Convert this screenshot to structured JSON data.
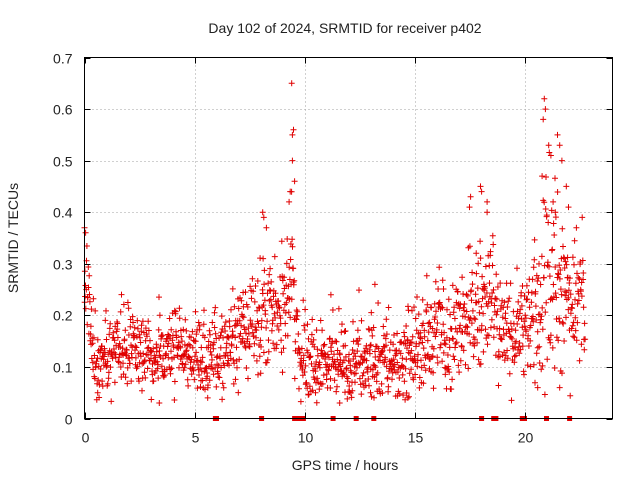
{
  "chart_data": {
    "type": "scatter",
    "title": "Day 102 of 2024, SRMTID for receiver p402",
    "xlabel": "GPS time / hours",
    "ylabel": "SRMTID / TECUs",
    "xlim": [
      0,
      24
    ],
    "ylim": [
      0,
      0.7
    ],
    "x_ticks": [
      0,
      5,
      10,
      15,
      20
    ],
    "x_tick_labels": [
      "0",
      "5",
      "10",
      "15",
      "20"
    ],
    "y_ticks": [
      0,
      0.1,
      0.2,
      0.3,
      0.4,
      0.5,
      0.6,
      0.7
    ],
    "y_tick_labels": [
      "0",
      "0.1",
      "0.2",
      "0.3",
      "0.4",
      "0.5",
      "0.6",
      "0.7"
    ],
    "grid": true,
    "marker": "+",
    "color": "#e00000",
    "profile": {
      "x": [
        0,
        0.05,
        0.15,
        0.4,
        0.8,
        1.5,
        2.5,
        3.3,
        4.0,
        5.0,
        6.0,
        6.8,
        7.3,
        7.8,
        8.3,
        8.8,
        9.1,
        9.4,
        9.6,
        9.8,
        10.2,
        11.0,
        12.0,
        13.0,
        13.8,
        14.5,
        15.2,
        16.0,
        17.0,
        17.8,
        18.3,
        18.7,
        19.2,
        19.8,
        20.3,
        20.8,
        21.1,
        21.5,
        21.9,
        22.4,
        22.75
      ],
      "y": [
        0.2,
        0.3,
        0.19,
        0.13,
        0.12,
        0.14,
        0.13,
        0.12,
        0.13,
        0.13,
        0.12,
        0.15,
        0.17,
        0.2,
        0.21,
        0.2,
        0.24,
        0.32,
        0.15,
        0.12,
        0.12,
        0.11,
        0.11,
        0.11,
        0.11,
        0.12,
        0.15,
        0.16,
        0.17,
        0.2,
        0.25,
        0.2,
        0.17,
        0.17,
        0.18,
        0.22,
        0.3,
        0.28,
        0.25,
        0.22,
        0.22
      ]
    },
    "spread": {
      "x": [
        0,
        0.2,
        1.0,
        3.0,
        5.0,
        6.5,
        7.5,
        8.5,
        9.2,
        9.6,
        10.5,
        12.0,
        14.0,
        15.5,
        17.0,
        17.8,
        18.5,
        19.5,
        20.5,
        21.0,
        21.6,
        22.0,
        22.75
      ],
      "y": [
        0.05,
        0.06,
        0.04,
        0.04,
        0.04,
        0.04,
        0.05,
        0.06,
        0.07,
        0.05,
        0.04,
        0.04,
        0.04,
        0.05,
        0.06,
        0.07,
        0.06,
        0.05,
        0.07,
        0.1,
        0.09,
        0.08,
        0.06
      ]
    },
    "peaks": [
      {
        "x": 0.0,
        "y": 0.37
      },
      {
        "x": 0.05,
        "y": 0.36
      },
      {
        "x": 8.1,
        "y": 0.4
      },
      {
        "x": 8.15,
        "y": 0.39
      },
      {
        "x": 9.3,
        "y": 0.42
      },
      {
        "x": 9.35,
        "y": 0.44
      },
      {
        "x": 9.45,
        "y": 0.5
      },
      {
        "x": 9.45,
        "y": 0.55
      },
      {
        "x": 9.5,
        "y": 0.56
      },
      {
        "x": 9.55,
        "y": 0.46
      },
      {
        "x": 9.42,
        "y": 0.65
      },
      {
        "x": 11.2,
        "y": 0.24
      },
      {
        "x": 13.2,
        "y": 0.26
      },
      {
        "x": 17.5,
        "y": 0.41
      },
      {
        "x": 17.55,
        "y": 0.43
      },
      {
        "x": 18.0,
        "y": 0.45
      },
      {
        "x": 18.05,
        "y": 0.44
      },
      {
        "x": 18.3,
        "y": 0.42
      },
      {
        "x": 18.3,
        "y": 0.4
      },
      {
        "x": 20.9,
        "y": 0.62
      },
      {
        "x": 20.95,
        "y": 0.6
      },
      {
        "x": 20.85,
        "y": 0.58
      },
      {
        "x": 21.1,
        "y": 0.53
      },
      {
        "x": 21.2,
        "y": 0.51
      },
      {
        "x": 21.5,
        "y": 0.55
      },
      {
        "x": 21.6,
        "y": 0.53
      },
      {
        "x": 21.7,
        "y": 0.5
      },
      {
        "x": 21.9,
        "y": 0.45
      },
      {
        "x": 21.3,
        "y": 0.42
      },
      {
        "x": 21.4,
        "y": 0.4
      },
      {
        "x": 22.0,
        "y": 0.41
      },
      {
        "x": 20.8,
        "y": 0.47
      }
    ],
    "lows": [
      {
        "x": 3.4,
        "y": 0.03
      },
      {
        "x": 5.6,
        "y": 0.04
      },
      {
        "x": 10.5,
        "y": 0.05
      },
      {
        "x": 11.6,
        "y": 0.03
      },
      {
        "x": 13.0,
        "y": 0.05
      },
      {
        "x": 14.7,
        "y": 0.04
      },
      {
        "x": 0.6,
        "y": 0.05
      },
      {
        "x": 20.6,
        "y": 0.06
      },
      {
        "x": 21.6,
        "y": 0.06
      }
    ],
    "data_gaps": [
      5.95,
      6.0,
      8.05,
      9.55,
      9.6,
      9.75,
      9.95,
      11.3,
      12.35,
      13.15,
      18.05,
      18.6,
      18.7,
      19.9,
      20.0,
      21.0,
      22.05
    ]
  }
}
